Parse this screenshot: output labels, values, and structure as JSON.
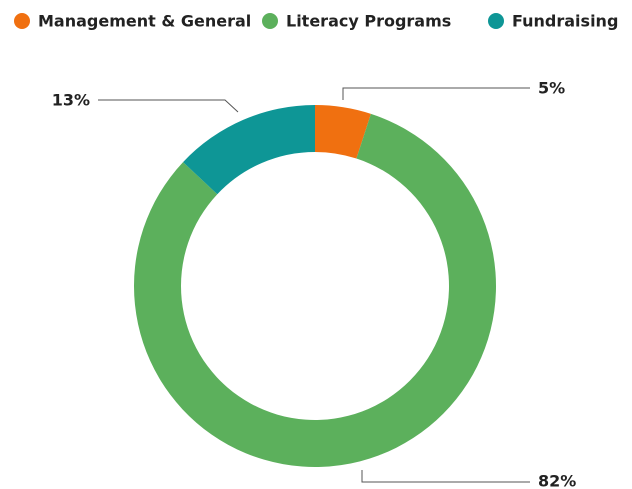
{
  "chart_data": {
    "type": "donut",
    "categories": [
      "Management & General",
      "Literacy Programs",
      "Fundraising"
    ],
    "values": [
      5,
      82,
      13
    ],
    "value_labels": [
      "5%",
      "82%",
      "13%"
    ],
    "colors": [
      "#f07010",
      "#5cb05c",
      "#0e9696"
    ]
  }
}
